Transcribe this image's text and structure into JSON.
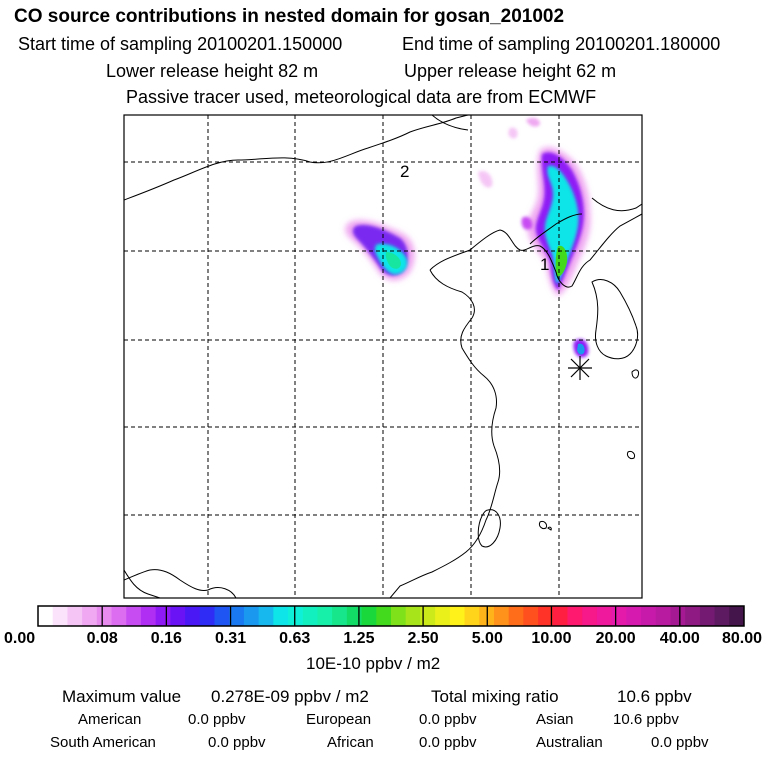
{
  "header": {
    "title": "CO  source contributions in nested domain for gosan_201002",
    "start_time": "Start time of sampling 20100201.150000",
    "end_time": "End time of sampling 20100201.180000",
    "lower_release": "Lower release height   82 m",
    "upper_release": "Upper release height   62 m",
    "tracer_note": "Passive tracer used, meteorological data are from ECMWF"
  },
  "map": {
    "labels": {
      "site_1": "1",
      "site_2": "2"
    },
    "receptor_marker": "asterisk"
  },
  "colorbar": {
    "ticks": [
      "0.00",
      "0.08",
      "0.16",
      "0.31",
      "0.63",
      "1.25",
      "2.50",
      "5.00",
      "10.00",
      "20.00",
      "40.00",
      "80.00"
    ],
    "units": "10E-10 ppbv / m2",
    "colors": [
      "#ffffff",
      "#fbe3fb",
      "#f5c6f5",
      "#efa8f1",
      "#e88bef",
      "#dc6cf0",
      "#c74cf2",
      "#b02ef3",
      "#8f1af5",
      "#6a14f5",
      "#4a18f5",
      "#2e2cf5",
      "#1f56f3",
      "#1a78f1",
      "#1a98ef",
      "#17b8ee",
      "#0ee5e8",
      "#0ff0d8",
      "#12f0c0",
      "#16f0a8",
      "#17e68a",
      "#12dc66",
      "#19d83b",
      "#43da1e",
      "#7fe11a",
      "#a8e41a",
      "#ccea1a",
      "#eaf01a",
      "#fff21a",
      "#ffd41a",
      "#ffb31a",
      "#ff921a",
      "#ff6d1a",
      "#ff501e",
      "#ff3328",
      "#ff1f40",
      "#ff1a70",
      "#f7198a",
      "#ee199c",
      "#e41aab",
      "#d61aaf",
      "#c81aaa",
      "#b81aa0",
      "#a51a93",
      "#8f1a83",
      "#751a72",
      "#5d1a60",
      "#44154b"
    ]
  },
  "footer": {
    "max_label": "Maximum value",
    "max_value": "0.278E-09 ppbv / m2",
    "total_label": "Total mixing ratio",
    "total_value": "10.6 ppbv",
    "regions": [
      {
        "name": "American",
        "value": "0.0 ppbv"
      },
      {
        "name": "European",
        "value": "0.0 ppbv"
      },
      {
        "name": "Asian",
        "value": "10.6 ppbv"
      },
      {
        "name": "South American",
        "value": "0.0 ppbv"
      },
      {
        "name": "African",
        "value": "0.0 ppbv"
      },
      {
        "name": "Australian",
        "value": "0.0 ppbv"
      }
    ]
  }
}
